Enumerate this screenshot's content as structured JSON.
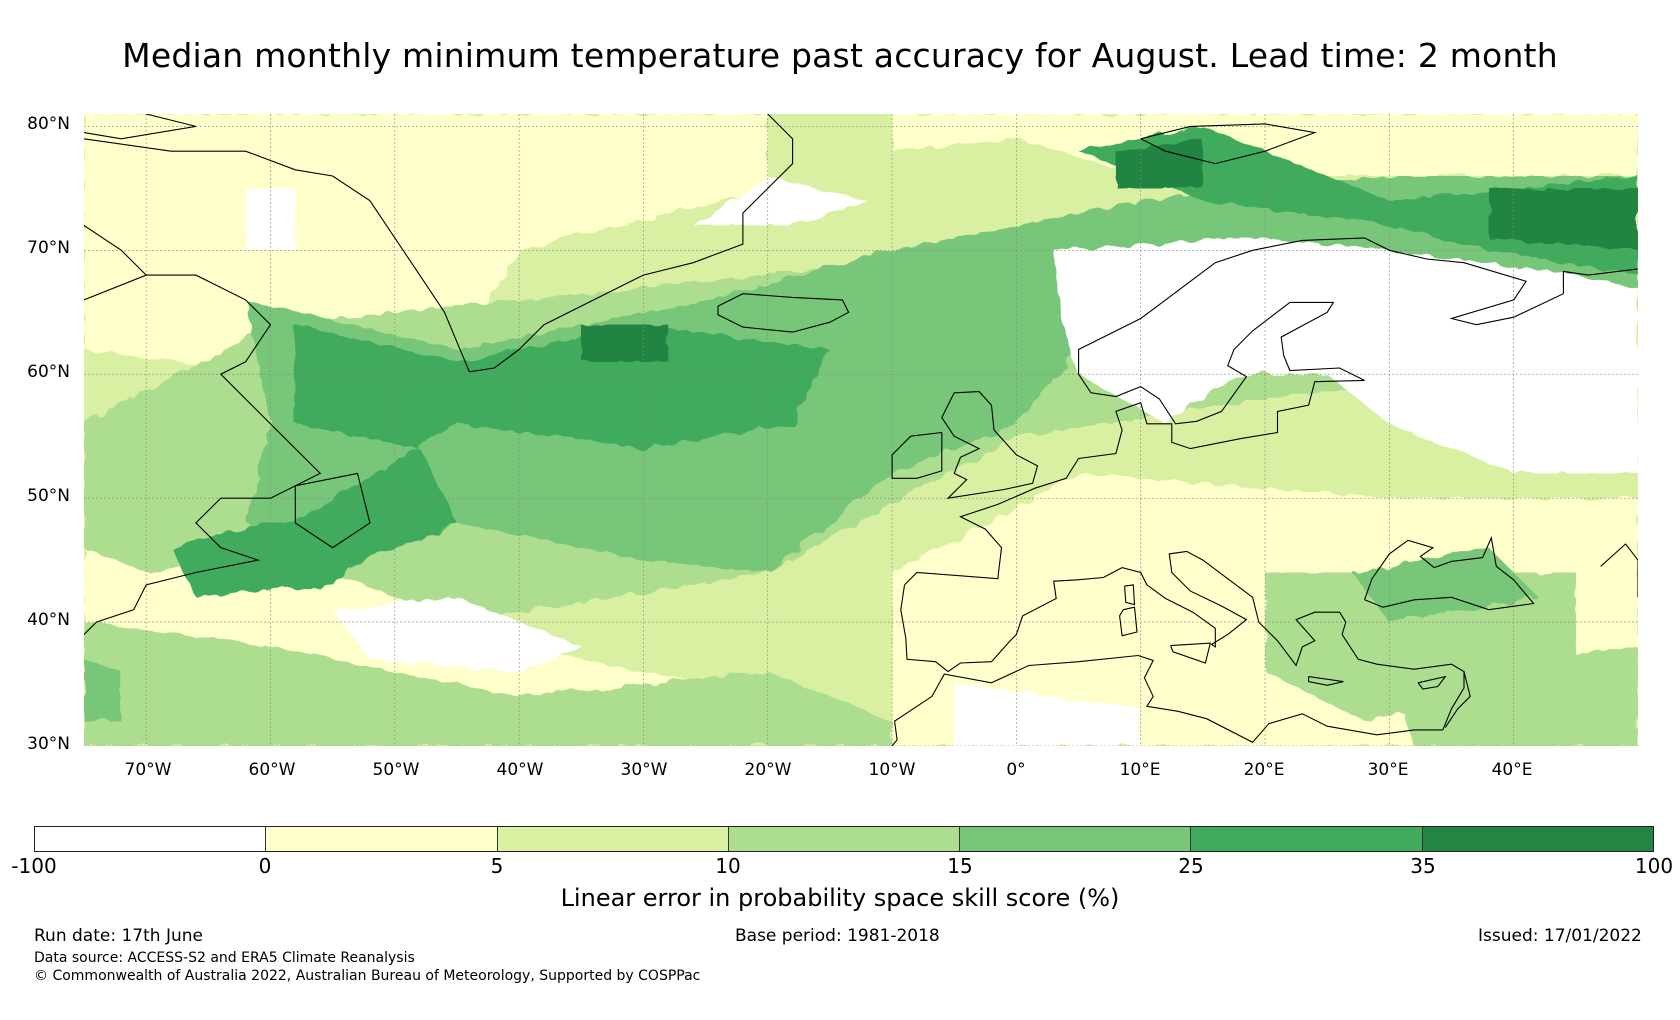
{
  "title": "Median monthly minimum temperature past accuracy for August. Lead time: 2 month",
  "map": {
    "projection": "equirectangular",
    "lon_range": [
      -75,
      50
    ],
    "lat_range": [
      30,
      81
    ],
    "lat_labels": [
      "80°N",
      "70°N",
      "60°N",
      "50°N",
      "40°N",
      "30°N"
    ],
    "lon_labels": [
      "70°W",
      "60°W",
      "50°W",
      "40°W",
      "30°W",
      "20°W",
      "10°W",
      "0°",
      "10°E",
      "20°E",
      "30°E",
      "40°E"
    ],
    "gridline_color": "#888888",
    "coastline_color": "#000000"
  },
  "colorbar": {
    "ticks": [
      "-100",
      "0",
      "5",
      "10",
      "15",
      "25",
      "35",
      "100"
    ],
    "colors": [
      "#ffffff",
      "#ffffcc",
      "#d9f0a3",
      "#addd8e",
      "#78c679",
      "#41ab5d",
      "#238443"
    ],
    "label": "Linear error in probability space skill score (%)"
  },
  "footer": {
    "run_date": "Run date: 17th June",
    "base_period": "Base period: 1981-2018",
    "issued": "Issued: 17/01/2022",
    "data_source": "Data source: ACCESS-S2 and ERA5 Climate Reanalysis",
    "copyright": "© Commonwealth of Australia 2022, Australian Bureau of Meteorology, Supported by COSPPac"
  }
}
